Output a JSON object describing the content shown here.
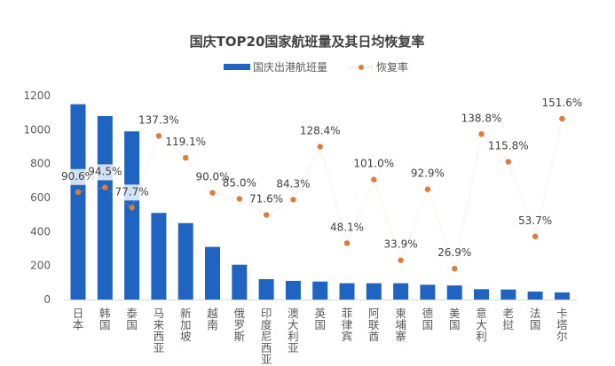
{
  "chart_data": {
    "type": "bar+line",
    "title": "国庆TOP20国家航班量及其日均恢复率",
    "legend_position": "top",
    "grid": false,
    "categories": [
      "日本",
      "韩国",
      "泰国",
      "马来西亚",
      "新加坡",
      "越南",
      "俄罗斯",
      "印度尼西亚",
      "澳大利亚",
      "英国",
      "菲律宾",
      "阿联酋",
      "柬埔寨",
      "德国",
      "美国",
      "意大利",
      "老挝",
      "法国",
      "卡塔尔"
    ],
    "series": [
      {
        "name": "国庆出港航班量",
        "type": "bar",
        "axis": "left",
        "color": "#1F64C0",
        "values": [
          1150,
          1080,
          990,
          510,
          450,
          310,
          205,
          120,
          110,
          106,
          96,
          96,
          96,
          87,
          83,
          61,
          59,
          47,
          42
        ]
      },
      {
        "name": "恢复率",
        "type": "line",
        "axis": "right",
        "color": "#E07B39",
        "values": [
          90.6,
          94.5,
          77.7,
          137.3,
          119.1,
          90.0,
          85.0,
          71.6,
          84.3,
          128.4,
          48.1,
          101.0,
          33.9,
          92.9,
          26.9,
          138.8,
          115.8,
          53.7,
          151.6
        ],
        "labels": [
          "90.6%",
          "94.5%",
          "77.7%",
          "137.3%",
          "119.1%",
          "90.0%",
          "85.0%",
          "71.6%",
          "84.3%",
          "128.4%",
          "48.1%",
          "101.0%",
          "33.9%",
          "92.9%",
          "26.9%",
          "138.8%",
          "115.8%",
          "53.7%",
          "151.6%"
        ]
      }
    ],
    "ylim": [
      0,
      1200
    ],
    "yticks": [
      "0",
      "200",
      "400",
      "600",
      "800",
      "1000",
      "1200"
    ],
    "y2lim": [
      0,
      170
    ]
  }
}
